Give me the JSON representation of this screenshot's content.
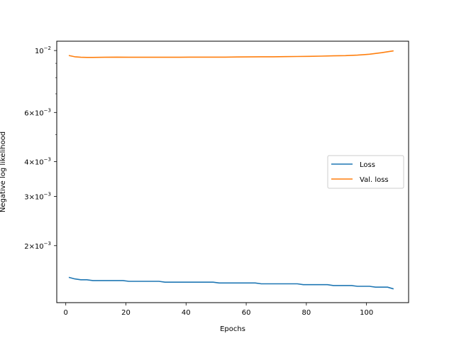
{
  "chart_data": {
    "type": "line",
    "title": "",
    "xlabel": "Epochs",
    "ylabel": "Negative log likelihood",
    "xlim": [
      -3,
      114
    ],
    "ylim": [
      0.00125,
      0.0108
    ],
    "yscale": "log",
    "grid": false,
    "legend_position": "center-right",
    "x_ticks": [
      0,
      20,
      40,
      60,
      80,
      100
    ],
    "x_tick_labels": [
      "0",
      "20",
      "40",
      "60",
      "80",
      "100"
    ],
    "y_ticks": [
      0.002,
      0.003,
      0.004,
      0.006,
      0.01
    ],
    "y_tick_labels": [
      {
        "mantissa": "2",
        "times": "×",
        "base": "10",
        "exp": "−3"
      },
      {
        "mantissa": "3",
        "times": "×",
        "base": "10",
        "exp": "−3"
      },
      {
        "mantissa": "4",
        "times": "×",
        "base": "10",
        "exp": "−3"
      },
      {
        "mantissa": "6",
        "times": "×",
        "base": "10",
        "exp": "−3"
      },
      {
        "mantissa": "",
        "times": "",
        "base": "10",
        "exp": "−2"
      }
    ],
    "y_minor_ticks": [
      0.005,
      0.007,
      0.008,
      0.009
    ],
    "series": [
      {
        "name": "Loss",
        "color": "#1f77b4",
        "x": [
          1,
          3,
          5,
          7,
          9,
          11,
          13,
          15,
          17,
          19,
          21,
          23,
          25,
          27,
          29,
          31,
          33,
          35,
          37,
          39,
          41,
          43,
          45,
          47,
          49,
          51,
          53,
          55,
          57,
          59,
          61,
          63,
          65,
          67,
          69,
          71,
          73,
          75,
          77,
          79,
          81,
          83,
          85,
          87,
          89,
          91,
          93,
          95,
          97,
          99,
          101,
          103,
          105,
          107,
          109
        ],
        "y": [
          0.00154,
          0.00152,
          0.00151,
          0.00151,
          0.0015,
          0.0015,
          0.0015,
          0.0015,
          0.0015,
          0.0015,
          0.00149,
          0.00149,
          0.00149,
          0.00149,
          0.00149,
          0.00149,
          0.00148,
          0.00148,
          0.00148,
          0.00148,
          0.00148,
          0.00148,
          0.00148,
          0.00148,
          0.00148,
          0.00147,
          0.00147,
          0.00147,
          0.00147,
          0.00147,
          0.00147,
          0.00147,
          0.00146,
          0.00146,
          0.00146,
          0.00146,
          0.00146,
          0.00146,
          0.00146,
          0.00145,
          0.00145,
          0.00145,
          0.00145,
          0.00145,
          0.00144,
          0.00144,
          0.00144,
          0.00144,
          0.00143,
          0.00143,
          0.00143,
          0.00142,
          0.00142,
          0.00142,
          0.0014
        ]
      },
      {
        "name": "Val. loss",
        "color": "#ff7f0e",
        "x": [
          1,
          3,
          5,
          7,
          9,
          13,
          17,
          21,
          25,
          29,
          33,
          37,
          41,
          45,
          49,
          53,
          57,
          61,
          65,
          69,
          73,
          77,
          81,
          85,
          89,
          93,
          97,
          101,
          105,
          109
        ],
        "y": [
          0.0096,
          0.0095,
          0.00946,
          0.00945,
          0.00945,
          0.00946,
          0.00947,
          0.00946,
          0.00946,
          0.00946,
          0.00946,
          0.00946,
          0.00947,
          0.00947,
          0.00947,
          0.00947,
          0.00948,
          0.00949,
          0.0095,
          0.0095,
          0.00951,
          0.00952,
          0.00953,
          0.00955,
          0.00957,
          0.00959,
          0.00963,
          0.0097,
          0.00982,
          0.00997
        ]
      }
    ]
  }
}
